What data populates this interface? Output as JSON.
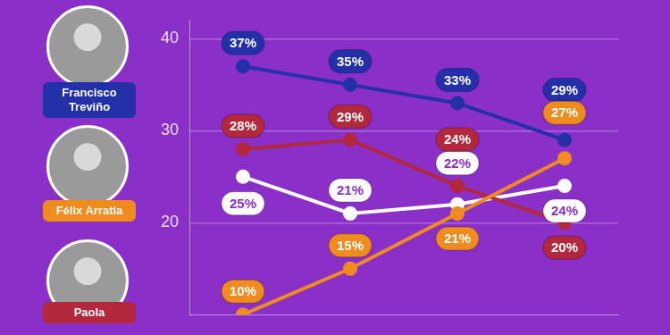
{
  "chart_data": {
    "type": "line",
    "categories": [
      null,
      null,
      null,
      null
    ],
    "series": [
      {
        "name": "Francisco Treviño",
        "color": "#2330a8",
        "values": [
          37,
          35,
          33,
          29
        ],
        "value_labels": [
          "37%",
          "35%",
          "33%",
          "29%"
        ]
      },
      {
        "name": "Félix Arratia",
        "color": "#f08c1e",
        "values": [
          10,
          15,
          21,
          27
        ],
        "value_labels": [
          "10%",
          "15%",
          "21%",
          "27%"
        ]
      },
      {
        "name": "Paola",
        "color": "#b3283c",
        "values": [
          28,
          29,
          24,
          20
        ],
        "value_labels": [
          "28%",
          "29%",
          "24%",
          "20%"
        ]
      },
      {
        "color": "#ffffff",
        "values": [
          25,
          21,
          22,
          24
        ],
        "value_labels": [
          "25%",
          "21%",
          "22%",
          "24%"
        ]
      }
    ],
    "ylim": [
      10,
      42
    ],
    "yticks": [
      20,
      30,
      40
    ],
    "grid": true,
    "data_labels": true,
    "tick_labels": "y"
  }
}
